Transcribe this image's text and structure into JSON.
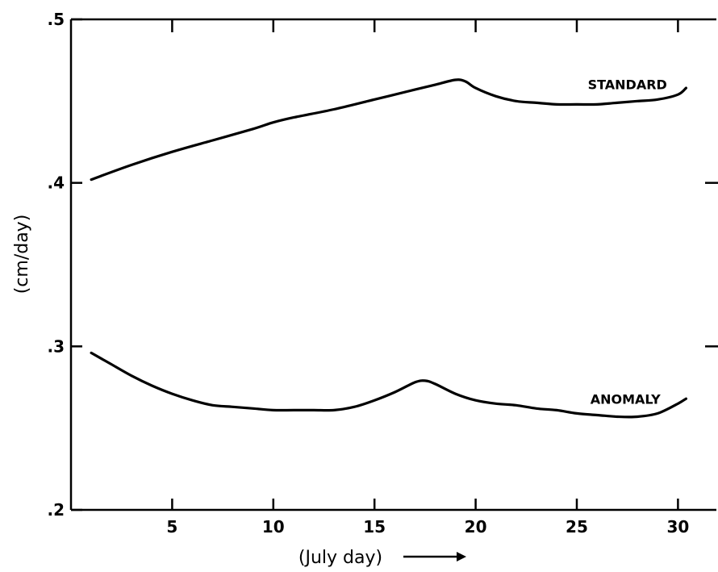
{
  "chart_data": {
    "type": "line",
    "title": "",
    "xlabel": "(July day)",
    "ylabel": "(cm/day)",
    "xlim": [
      0,
      31.5
    ],
    "ylim": [
      0.2,
      0.5
    ],
    "x_ticks": [
      5,
      10,
      15,
      20,
      25,
      30
    ],
    "x_tick_labels": [
      "5",
      "10",
      "15",
      "20",
      "25",
      "30"
    ],
    "y_ticks": [
      0.2,
      0.3,
      0.4,
      0.5
    ],
    "y_tick_labels": [
      ".2",
      ".3",
      ".4",
      ".5"
    ],
    "grid": false,
    "series": [
      {
        "name": "STANDARD",
        "x": [
          1,
          3,
          5,
          7,
          9,
          10,
          11,
          13,
          15,
          17,
          18,
          19,
          19.5,
          20,
          21,
          22,
          23,
          24,
          25,
          26,
          27,
          28,
          29,
          30,
          30.4
        ],
        "y": [
          0.402,
          0.411,
          0.419,
          0.426,
          0.433,
          0.437,
          0.44,
          0.445,
          0.451,
          0.457,
          0.46,
          0.463,
          0.462,
          0.458,
          0.453,
          0.45,
          0.449,
          0.448,
          0.448,
          0.448,
          0.449,
          0.45,
          0.451,
          0.454,
          0.458
        ]
      },
      {
        "name": "ANOMALY",
        "x": [
          1,
          2,
          3,
          4,
          5,
          6,
          7,
          8,
          9,
          10,
          11,
          12,
          13,
          14,
          15,
          16,
          17,
          17.5,
          18,
          19,
          20,
          21,
          22,
          23,
          24,
          25,
          26,
          27,
          28,
          29,
          30,
          30.4
        ],
        "y": [
          0.296,
          0.289,
          0.282,
          0.276,
          0.271,
          0.267,
          0.264,
          0.263,
          0.262,
          0.261,
          0.261,
          0.261,
          0.261,
          0.263,
          0.267,
          0.272,
          0.278,
          0.279,
          0.277,
          0.271,
          0.267,
          0.265,
          0.264,
          0.262,
          0.261,
          0.259,
          0.258,
          0.257,
          0.257,
          0.259,
          0.265,
          0.268
        ]
      }
    ],
    "annotations": [
      {
        "text": "STANDARD",
        "series": 0
      },
      {
        "text": "ANOMALY",
        "series": 1
      }
    ]
  }
}
